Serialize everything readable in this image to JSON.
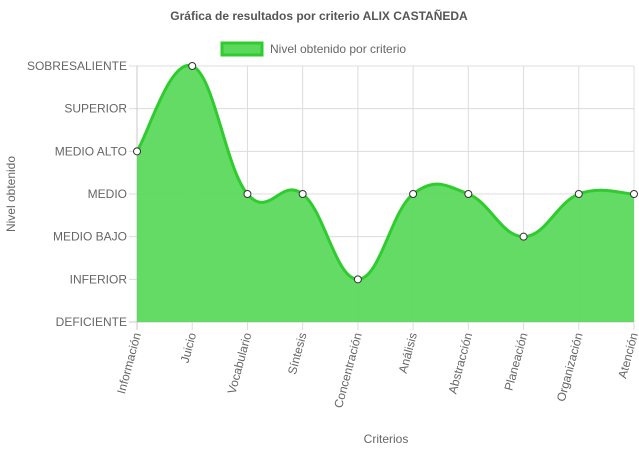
{
  "chart_data": {
    "type": "line",
    "title": "Gráfica de resultados por criterio ALIX CASTAÑEDA",
    "xlabel": "Criterios",
    "ylabel": "Nivel obtenido",
    "legend_position": "top",
    "grid": true,
    "filled": true,
    "smooth": true,
    "line_color": "#2ecc2e",
    "fill_color": "#5cd95c",
    "y_levels": [
      "DEFICIENTE",
      "INFERIOR",
      "MEDIO BAJO",
      "MEDIO",
      "MEDIO ALTO",
      "SUPERIOR",
      "SOBRESALIENTE"
    ],
    "ylim": [
      0,
      6
    ],
    "categories": [
      "Información",
      "Juicio",
      "Vocabulario",
      "Síntesis",
      "Concentración",
      "Análisis",
      "Abstracción",
      "Planeación",
      "Organización",
      "Atención"
    ],
    "series": [
      {
        "name": "Nivel obtenido por criterio",
        "values": [
          4,
          6,
          3,
          3,
          1,
          3,
          3,
          2,
          3,
          3
        ]
      }
    ]
  }
}
